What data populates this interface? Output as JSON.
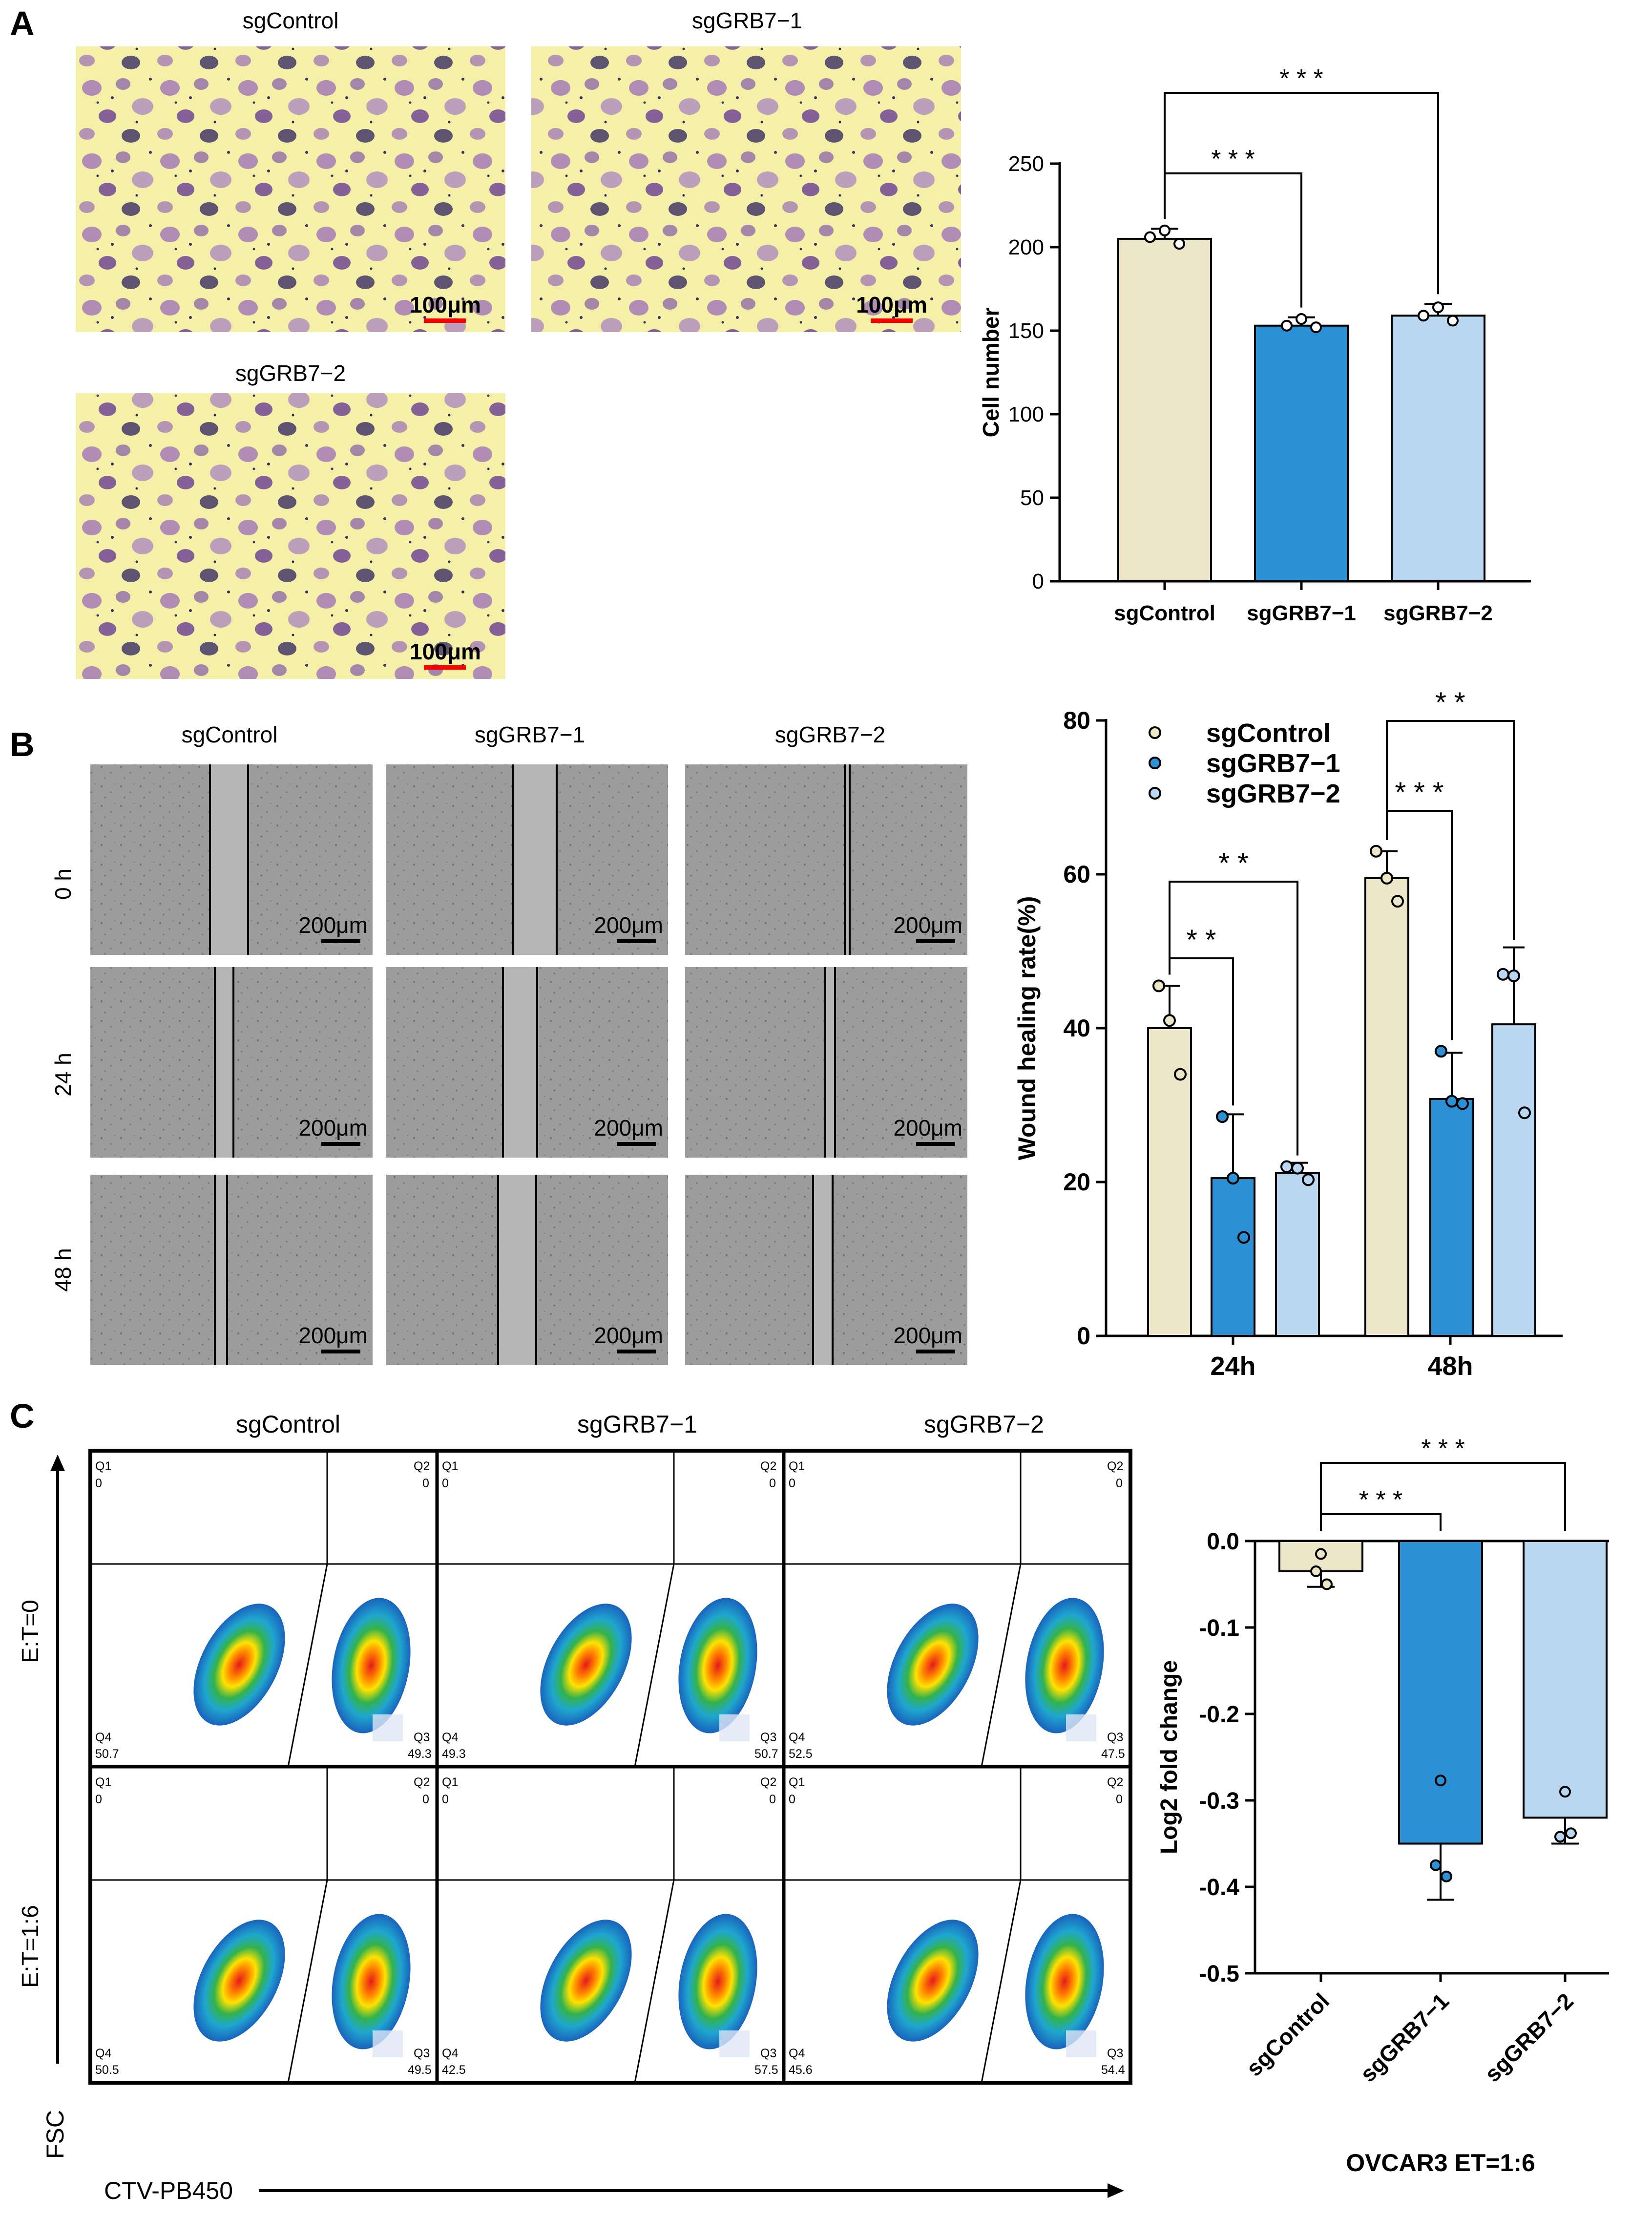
{
  "panels": {
    "A": {
      "letter": "A",
      "micrograph_labels": [
        "sgControl",
        "sgGRB7−1",
        "sgGRB7−2"
      ],
      "scale_bar": "100μm",
      "chart": {
        "type": "bar",
        "ylabel": "Cell number",
        "categories": [
          "sgControl",
          "sgGRB7−1",
          "sgGRB7−2"
        ],
        "values": [
          205,
          153,
          159
        ],
        "errors": [
          6,
          5,
          7
        ],
        "points": [
          [
            206,
            210,
            202
          ],
          [
            153,
            157,
            152
          ],
          [
            159,
            164,
            156
          ]
        ],
        "ylim": [
          0,
          250
        ],
        "yticks": [
          "0",
          "50",
          "100",
          "150",
          "200",
          "250"
        ],
        "colors": [
          "#ece5c8",
          "#2b91d4",
          "#b9d7f1"
        ],
        "significance": [
          "* * *",
          "* * *"
        ]
      }
    },
    "B": {
      "letter": "B",
      "column_labels": [
        "sgControl",
        "sgGRB7−1",
        "sgGRB7−2"
      ],
      "row_labels": [
        "0 h",
        "24 h",
        "48 h"
      ],
      "scale_bar": "200μm",
      "chart": {
        "type": "bar",
        "ylabel": "Wound healing rate(%)",
        "categories": [
          "24h",
          "48h"
        ],
        "series": [
          {
            "name": "sgControl",
            "values": [
              40,
              59.5
            ],
            "errors": [
              5.5,
              3.5
            ],
            "points": [
              [
                45.5,
                41,
                34
              ],
              [
                63,
                59.5,
                56.5
              ]
            ],
            "color": "#ece5c8"
          },
          {
            "name": "sgGRB7−1",
            "values": [
              20.5,
              30.8
            ],
            "errors": [
              8.3,
              6
            ],
            "points": [
              [
                28.5,
                20.5,
                12.8
              ],
              [
                37,
                30.5,
                30.2
              ]
            ],
            "color": "#2b91d4"
          },
          {
            "name": "sgGRB7−2",
            "values": [
              21.2,
              40.5
            ],
            "errors": [
              1.3,
              10
            ],
            "points": [
              [
                22,
                21.8,
                20.3
              ],
              [
                47,
                46.8,
                29
              ]
            ],
            "color": "#b9d7f1"
          }
        ],
        "ylim": [
          0,
          80
        ],
        "yticks": [
          "0",
          "20",
          "40",
          "60",
          "80"
        ],
        "significance": [
          "* *",
          "* *",
          "* * *",
          "* *"
        ]
      }
    },
    "C": {
      "letter": "C",
      "column_labels": [
        "sgControl",
        "sgGRB7−1",
        "sgGRB7−2"
      ],
      "row_labels": [
        "E:T=0",
        "E:T=1:6"
      ],
      "y_axis": "FSC",
      "x_axis": "CTV-PB450",
      "quadrants": [
        [
          {
            "q1": "Q1",
            "q1v": "0",
            "q2": "Q2",
            "q2v": "0",
            "q3": "Q3",
            "q3v": "49.3",
            "q4": "Q4",
            "q4v": "50.7"
          },
          {
            "q1": "Q1",
            "q1v": "0",
            "q2": "Q2",
            "q2v": "0",
            "q3": "Q3",
            "q3v": "50.7",
            "q4": "Q4",
            "q4v": "49.3"
          },
          {
            "q1": "Q1",
            "q1v": "0",
            "q2": "Q2",
            "q2v": "0",
            "q3": "Q3",
            "q3v": "47.5",
            "q4": "Q4",
            "q4v": "52.5"
          }
        ],
        [
          {
            "q1": "Q1",
            "q1v": "0",
            "q2": "Q2",
            "q2v": "0",
            "q3": "Q3",
            "q3v": "49.5",
            "q4": "Q4",
            "q4v": "50.5"
          },
          {
            "q1": "Q1",
            "q1v": "0",
            "q2": "Q2",
            "q2v": "0",
            "q3": "Q3",
            "q3v": "57.5",
            "q4": "Q4",
            "q4v": "42.5"
          },
          {
            "q1": "Q1",
            "q1v": "0",
            "q2": "Q2",
            "q2v": "0",
            "q3": "Q3",
            "q3v": "54.4",
            "q4": "Q4",
            "q4v": "45.6"
          }
        ]
      ],
      "chart": {
        "type": "bar",
        "ylabel": "Log2 fold change",
        "xlabel": "OVCAR3  ET=1:6",
        "categories": [
          "sgControl",
          "sgGRB7−1",
          "sgGRB7−2"
        ],
        "values": [
          -0.035,
          -0.35,
          -0.32
        ],
        "errors": [
          0.018,
          0.065,
          0.03
        ],
        "points": [
          [
            -0.015,
            -0.035,
            -0.05
          ],
          [
            -0.277,
            -0.375,
            -0.388
          ],
          [
            -0.29,
            -0.342,
            -0.338
          ]
        ],
        "ylim": [
          -0.5,
          0
        ],
        "yticks": [
          "0.0",
          "-0.1",
          "-0.2",
          "-0.3",
          "-0.4",
          "-0.5"
        ],
        "colors": [
          "#ece5c8",
          "#2b91d4",
          "#b9d7f1"
        ],
        "significance": [
          "* * *",
          "* * *"
        ]
      }
    }
  }
}
